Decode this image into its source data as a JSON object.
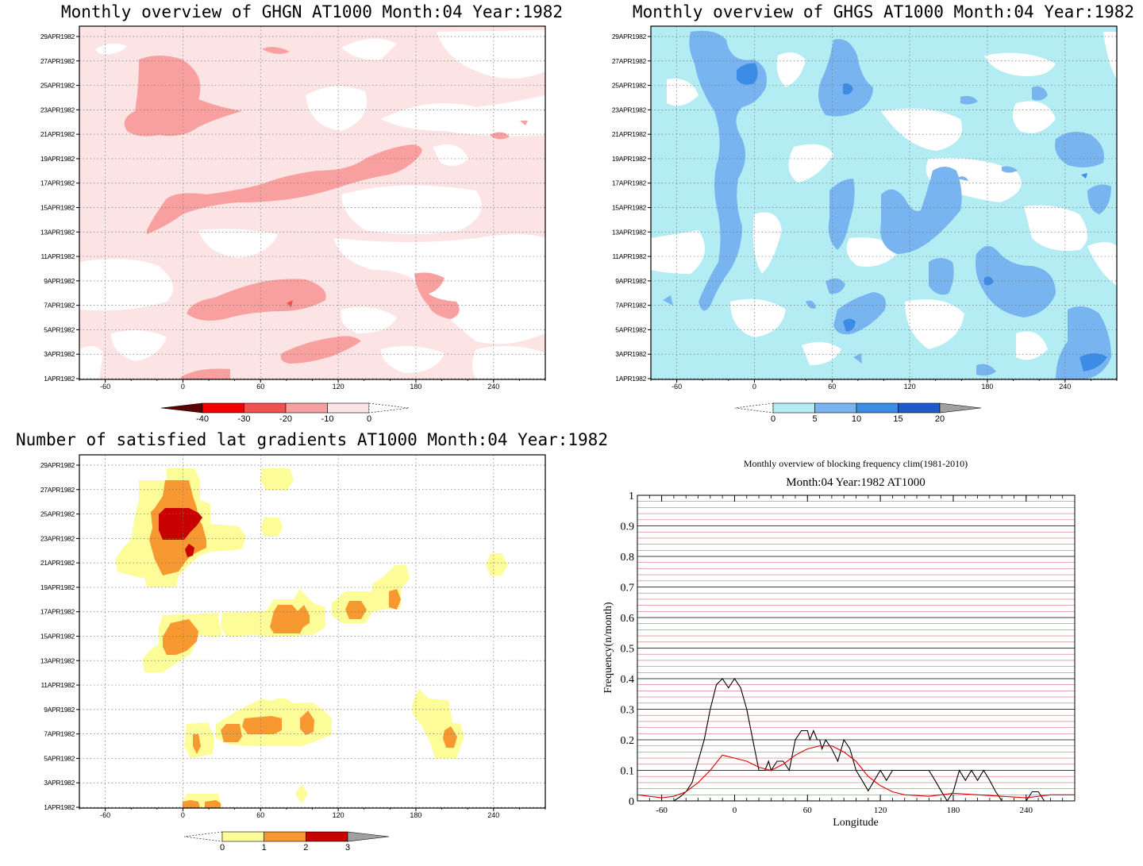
{
  "chart_data": [
    {
      "type": "heatmap",
      "title": "Monthly overview of GHGN AT1000 Month:04 Year:1982",
      "x_ticks": [
        "-60",
        "0",
        "60",
        "120",
        "180",
        "240"
      ],
      "x_tick_values": [
        -60,
        0,
        60,
        120,
        180,
        240
      ],
      "xlim": [
        -80,
        280
      ],
      "y_ticks": [
        "1APR1982",
        "3APR1982",
        "5APR1982",
        "7APR1982",
        "9APR1982",
        "11APR1982",
        "13APR1982",
        "15APR1982",
        "17APR1982",
        "19APR1982",
        "21APR1982",
        "23APR1982",
        "25APR1982",
        "27APR1982",
        "29APR1982"
      ],
      "colorbar": {
        "labels": [
          "-40",
          "-30",
          "-20",
          "-10",
          "0"
        ],
        "colors": [
          "#5a0000",
          "#f00000",
          "#f05050",
          "#f8a0a0",
          "#fde4e4"
        ]
      },
      "grid": true
    },
    {
      "type": "heatmap",
      "title": "Monthly overview of GHGS AT1000 Month:04 Year:1982",
      "x_ticks": [
        "-60",
        "0",
        "60",
        "120",
        "180",
        "240"
      ],
      "x_tick_values": [
        -60,
        0,
        60,
        120,
        180,
        240
      ],
      "xlim": [
        -80,
        280
      ],
      "y_ticks": [
        "1APR1982",
        "3APR1982",
        "5APR1982",
        "7APR1982",
        "9APR1982",
        "11APR1982",
        "13APR1982",
        "15APR1982",
        "17APR1982",
        "19APR1982",
        "21APR1982",
        "23APR1982",
        "25APR1982",
        "27APR1982",
        "29APR1982"
      ],
      "colorbar": {
        "labels": [
          "0",
          "5",
          "10",
          "15",
          "20"
        ],
        "colors": [
          "#b4ecf4",
          "#78b4f0",
          "#3c8ce6",
          "#1e5ac8",
          "#a0a0a0"
        ]
      },
      "grid": true
    },
    {
      "type": "heatmap",
      "title": "Number of satisfied lat gradients AT1000 Month:04 Year:1982",
      "x_ticks": [
        "-60",
        "0",
        "60",
        "120",
        "180",
        "240"
      ],
      "x_tick_values": [
        -60,
        0,
        60,
        120,
        180,
        240
      ],
      "xlim": [
        -80,
        280
      ],
      "y_ticks": [
        "1APR1982",
        "3APR1982",
        "5APR1982",
        "7APR1982",
        "9APR1982",
        "11APR1982",
        "13APR1982",
        "15APR1982",
        "17APR1982",
        "19APR1982",
        "21APR1982",
        "23APR1982",
        "25APR1982",
        "27APR1982",
        "29APR1982"
      ],
      "colorbar": {
        "labels": [
          "0",
          "1",
          "2",
          "3"
        ],
        "colors": [
          "#fcfc98",
          "#f89830",
          "#c80000",
          "#a0a0a0"
        ]
      },
      "grid": true
    },
    {
      "type": "line",
      "title": "Monthly overview of blocking frequency clim(1981-2010)",
      "subtitle": "Month:04 Year:1982  AT1000",
      "xlabel": "Longitude",
      "ylabel": "Frequency(n/month)",
      "xlim": [
        -80,
        280
      ],
      "ylim": [
        0,
        1
      ],
      "x_ticks": [
        "-60",
        "0",
        "60",
        "120",
        "180",
        "240"
      ],
      "x_tick_values": [
        -60,
        0,
        60,
        120,
        180,
        240
      ],
      "y_ticks": [
        "0",
        "0.1",
        "0.2",
        "0.3",
        "0.4",
        "0.5",
        "0.6",
        "0.7",
        "0.8",
        "0.9",
        "1"
      ],
      "series": [
        {
          "color": "#000000",
          "x": [
            -80,
            -60,
            -50,
            -45,
            -40,
            -35,
            -30,
            -25,
            -20,
            -15,
            -10,
            -5,
            0,
            5,
            10,
            15,
            20,
            25,
            28,
            30,
            35,
            40,
            45,
            50,
            55,
            60,
            62,
            65,
            68,
            70,
            72,
            75,
            80,
            85,
            90,
            95,
            100,
            105,
            110,
            115,
            120,
            125,
            130,
            135,
            160,
            165,
            170,
            175,
            180,
            185,
            190,
            195,
            200,
            205,
            210,
            215,
            220,
            240,
            245,
            250,
            255,
            260,
            280
          ],
          "y": [
            0,
            0,
            0,
            0.013,
            0.03,
            0.06,
            0.13,
            0.2,
            0.3,
            0.38,
            0.4,
            0.37,
            0.4,
            0.37,
            0.3,
            0.2,
            0.1,
            0.1,
            0.13,
            0.1,
            0.13,
            0.13,
            0.1,
            0.2,
            0.23,
            0.23,
            0.2,
            0.23,
            0.2,
            0.2,
            0.17,
            0.2,
            0.17,
            0.13,
            0.2,
            0.17,
            0.1,
            0.067,
            0.033,
            0.067,
            0.1,
            0.067,
            0.1,
            0.1,
            0.1,
            0.067,
            0.033,
            0,
            0.03,
            0.1,
            0.067,
            0.1,
            0.067,
            0.1,
            0.067,
            0.03,
            0,
            0,
            0.03,
            0.03,
            0,
            0,
            0
          ]
        },
        {
          "color": "#e00000",
          "x": [
            -80,
            -60,
            -50,
            -40,
            -30,
            -20,
            -10,
            0,
            10,
            20,
            30,
            40,
            50,
            60,
            70,
            80,
            90,
            100,
            110,
            120,
            130,
            140,
            160,
            180,
            200,
            220,
            240,
            260,
            280
          ],
          "y": [
            0.02,
            0.01,
            0.015,
            0.03,
            0.06,
            0.1,
            0.15,
            0.14,
            0.13,
            0.11,
            0.1,
            0.12,
            0.15,
            0.17,
            0.18,
            0.18,
            0.16,
            0.13,
            0.08,
            0.05,
            0.03,
            0.02,
            0.015,
            0.025,
            0.02,
            0.015,
            0.01,
            0.02,
            0.02
          ]
        }
      ],
      "grid": true
    }
  ]
}
